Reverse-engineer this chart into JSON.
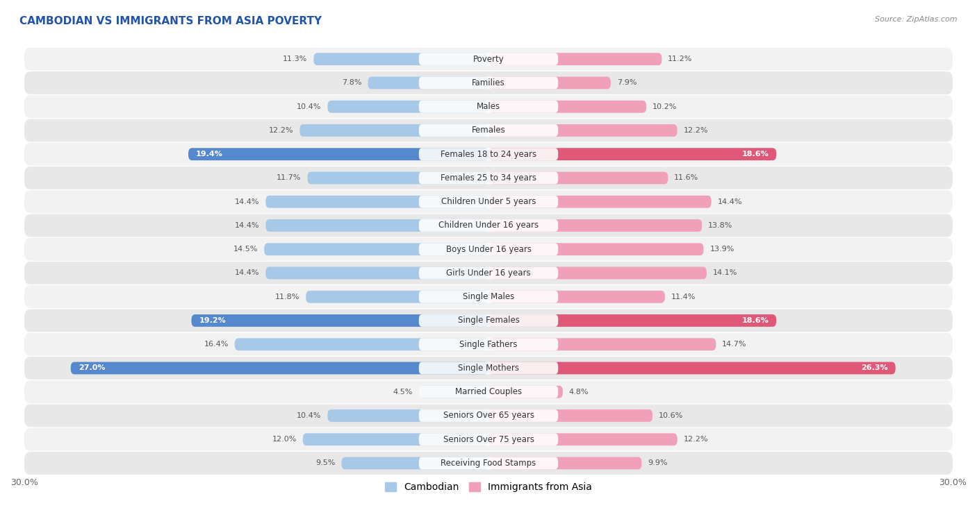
{
  "title": "CAMBODIAN VS IMMIGRANTS FROM ASIA POVERTY",
  "source": "Source: ZipAtlas.com",
  "categories": [
    "Poverty",
    "Families",
    "Males",
    "Females",
    "Females 18 to 24 years",
    "Females 25 to 34 years",
    "Children Under 5 years",
    "Children Under 16 years",
    "Boys Under 16 years",
    "Girls Under 16 years",
    "Single Males",
    "Single Females",
    "Single Fathers",
    "Single Mothers",
    "Married Couples",
    "Seniors Over 65 years",
    "Seniors Over 75 years",
    "Receiving Food Stamps"
  ],
  "cambodian": [
    11.3,
    7.8,
    10.4,
    12.2,
    19.4,
    11.7,
    14.4,
    14.4,
    14.5,
    14.4,
    11.8,
    19.2,
    16.4,
    27.0,
    4.5,
    10.4,
    12.0,
    9.5
  ],
  "immigrants": [
    11.2,
    7.9,
    10.2,
    12.2,
    18.6,
    11.6,
    14.4,
    13.8,
    13.9,
    14.1,
    11.4,
    18.6,
    14.7,
    26.3,
    4.8,
    10.6,
    12.2,
    9.9
  ],
  "cambodian_color": "#a8c8e8",
  "immigrant_color": "#f0a0b8",
  "highlight_cambodian": "#5588cc",
  "highlight_immigrant": "#e05878",
  "highlight_rows": [
    4,
    11,
    13
  ],
  "xlim": 30.0,
  "bar_height": 0.52,
  "row_bg_color": "#e8e8e8",
  "row_light_color": "#f0f0f0",
  "label_fontsize": 8.5,
  "title_fontsize": 11,
  "tick_fontsize": 9,
  "legend_fontsize": 10,
  "value_fontsize": 8.0
}
